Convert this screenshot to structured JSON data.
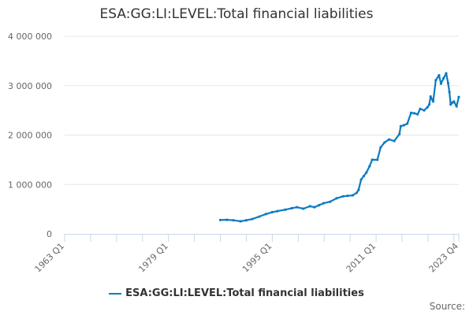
{
  "chart_data": {
    "type": "line",
    "title": "ESA:GG:LI:LEVEL:Total financial liabilities",
    "xlabel": "",
    "ylabel": "",
    "xlim": [
      1963.0,
      2023.75
    ],
    "ylim": [
      0,
      4000000
    ],
    "y_ticks": [
      0,
      1000000,
      2000000,
      3000000,
      4000000
    ],
    "y_tick_labels": [
      "0",
      "1 000 000",
      "2 000 000",
      "3 000 000",
      "4 000 000"
    ],
    "x_tick_labels": [
      {
        "label": "1963 Q1",
        "x": 1963.0
      },
      {
        "label": "1979 Q1",
        "x": 1979.0
      },
      {
        "label": "1995 Q1",
        "x": 1995.0
      },
      {
        "label": "2011 Q1",
        "x": 2011.0
      },
      {
        "label": "2023 Q4",
        "x": 2023.75
      }
    ],
    "grid": true,
    "legend_position": "bottom",
    "color": "#0b7bc1",
    "series": [
      {
        "name": "ESA:GG:LI:LEVEL:Total financial liabilities",
        "x": [
          1987.0,
          1988.0,
          1989.0,
          1990.1,
          1991.0,
          1991.9,
          1993.0,
          1994.0,
          1995.0,
          1995.8,
          1997.0,
          1998.0,
          1998.8,
          1999.8,
          2000.8,
          2001.5,
          2002.2,
          2002.9,
          2003.9,
          2004.9,
          2005.9,
          2006.6,
          2007.4,
          2008.0,
          2008.3,
          2008.7,
          2009.1,
          2009.5,
          2010.0,
          2010.4,
          2011.2,
          2011.7,
          2012.3,
          2013.0,
          2013.8,
          2014.6,
          2014.8,
          2015.3,
          2015.8,
          2016.4,
          2016.9,
          2017.4,
          2017.8,
          2018.4,
          2018.9,
          2019.2,
          2019.4,
          2019.8,
          2020.2,
          2020.7,
          2021.0,
          2021.4,
          2021.8,
          2022.1,
          2022.3,
          2022.5,
          2022.8,
          2023.0,
          2023.4,
          2023.75
        ],
        "y": [
          280000,
          285000,
          275000,
          255000,
          275000,
          300000,
          350000,
          400000,
          440000,
          460000,
          490000,
          520000,
          540000,
          510000,
          560000,
          540000,
          580000,
          620000,
          650000,
          720000,
          760000,
          770000,
          780000,
          830000,
          890000,
          1100000,
          1170000,
          1240000,
          1370000,
          1500000,
          1500000,
          1750000,
          1850000,
          1910000,
          1880000,
          2020000,
          2180000,
          2200000,
          2230000,
          2450000,
          2440000,
          2420000,
          2530000,
          2500000,
          2560000,
          2620000,
          2780000,
          2680000,
          3110000,
          3210000,
          3040000,
          3150000,
          3250000,
          3050000,
          2870000,
          2620000,
          2660000,
          2680000,
          2580000,
          2770000
        ]
      }
    ]
  },
  "source_label": "Source:"
}
